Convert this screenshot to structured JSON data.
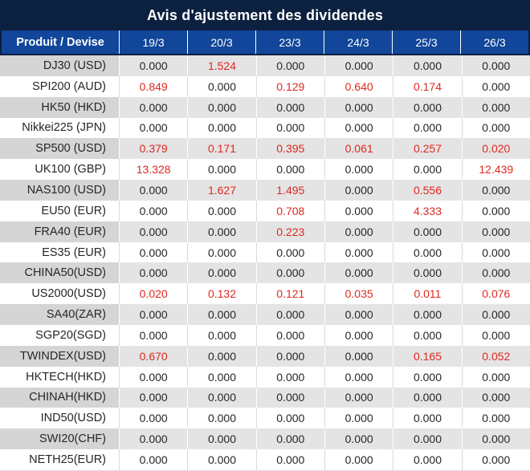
{
  "title": "Avis d'ajustement des dividendes",
  "table": {
    "product_header": "Produit / Devise",
    "date_headers": [
      "19/3",
      "20/3",
      "23/3",
      "24/3",
      "25/3",
      "26/3"
    ],
    "rows": [
      {
        "product": "DJ30 (USD)",
        "values": [
          "0.000",
          "1.524",
          "0.000",
          "0.000",
          "0.000",
          "0.000"
        ]
      },
      {
        "product": "SPI200 (AUD)",
        "values": [
          "0.849",
          "0.000",
          "0.129",
          "0.640",
          "0.174",
          "0.000"
        ]
      },
      {
        "product": "HK50 (HKD)",
        "values": [
          "0.000",
          "0.000",
          "0.000",
          "0.000",
          "0.000",
          "0.000"
        ]
      },
      {
        "product": "Nikkei225 (JPN)",
        "values": [
          "0.000",
          "0.000",
          "0.000",
          "0.000",
          "0.000",
          "0.000"
        ]
      },
      {
        "product": "SP500 (USD)",
        "values": [
          "0.379",
          "0.171",
          "0.395",
          "0.061",
          "0.257",
          "0.020"
        ]
      },
      {
        "product": "UK100 (GBP)",
        "values": [
          "13.328",
          "0.000",
          "0.000",
          "0.000",
          "0.000",
          "12.439"
        ]
      },
      {
        "product": "NAS100 (USD)",
        "values": [
          "0.000",
          "1.627",
          "1.495",
          "0.000",
          "0.556",
          "0.000"
        ]
      },
      {
        "product": "EU50 (EUR)",
        "values": [
          "0.000",
          "0.000",
          "0.708",
          "0.000",
          "4.333",
          "0.000"
        ]
      },
      {
        "product": "FRA40 (EUR)",
        "values": [
          "0.000",
          "0.000",
          "0.223",
          "0.000",
          "0.000",
          "0.000"
        ]
      },
      {
        "product": "ES35 (EUR)",
        "values": [
          "0.000",
          "0.000",
          "0.000",
          "0.000",
          "0.000",
          "0.000"
        ]
      },
      {
        "product": "CHINA50(USD)",
        "values": [
          "0.000",
          "0.000",
          "0.000",
          "0.000",
          "0.000",
          "0.000"
        ]
      },
      {
        "product": "US2000(USD)",
        "values": [
          "0.020",
          "0.132",
          "0.121",
          "0.035",
          "0.011",
          "0.076"
        ]
      },
      {
        "product": "SA40(ZAR)",
        "values": [
          "0.000",
          "0.000",
          "0.000",
          "0.000",
          "0.000",
          "0.000"
        ]
      },
      {
        "product": "SGP20(SGD)",
        "values": [
          "0.000",
          "0.000",
          "0.000",
          "0.000",
          "0.000",
          "0.000"
        ]
      },
      {
        "product": "TWINDEX(USD)",
        "values": [
          "0.670",
          "0.000",
          "0.000",
          "0.000",
          "0.165",
          "0.052"
        ]
      },
      {
        "product": "HKTECH(HKD)",
        "values": [
          "0.000",
          "0.000",
          "0.000",
          "0.000",
          "0.000",
          "0.000"
        ]
      },
      {
        "product": "CHINAH(HKD)",
        "values": [
          "0.000",
          "0.000",
          "0.000",
          "0.000",
          "0.000",
          "0.000"
        ]
      },
      {
        "product": "IND50(USD)",
        "values": [
          "0.000",
          "0.000",
          "0.000",
          "0.000",
          "0.000",
          "0.000"
        ]
      },
      {
        "product": "SWI20(CHF)",
        "values": [
          "0.000",
          "0.000",
          "0.000",
          "0.000",
          "0.000",
          "0.000"
        ]
      },
      {
        "product": "NETH25(EUR)",
        "values": [
          "0.000",
          "0.000",
          "0.000",
          "0.000",
          "0.000",
          "0.000"
        ]
      }
    ],
    "zero_value": "0.000"
  },
  "colors": {
    "title_bg": "#0c203f",
    "header_bg": "#11469a",
    "zero_text": "#262626",
    "nonzero_text": "#df2820",
    "row_alt_product_bg": "#d5d5d5",
    "row_alt_value_bg": "#e4e4e4",
    "grid_line": "#d9d9d9"
  }
}
